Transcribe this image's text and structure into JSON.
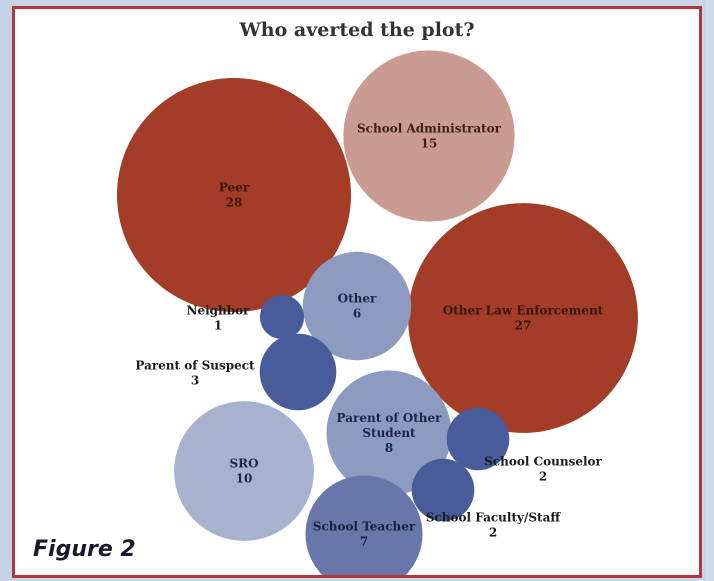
{
  "chart_data": {
    "type": "bubble",
    "title": "Who averted the plot?",
    "colors": {
      "peer": "#a33d27",
      "admin": "#c99b92",
      "law": "#a33d27",
      "light_blue": "#8e9bc0",
      "pale_blue": "#a7b2ce",
      "dark_blue": "#485b9a"
    },
    "bubbles": [
      {
        "name": "Peer",
        "value": 28,
        "color": "#a33d27",
        "text_color": "#3a1410"
      },
      {
        "name": "School Administrator",
        "value": 15,
        "color": "#c99b92",
        "text_color": "#3a1f1a"
      },
      {
        "name": "Other Law Enforcement",
        "value": 27,
        "color": "#a33d27",
        "text_color": "#3a1410"
      },
      {
        "name": "Other",
        "value": 6,
        "color": "#8e9bc0",
        "text_color": "#1d2547"
      },
      {
        "name": "Neighbor",
        "value": 1,
        "color": "#485b9a",
        "text_color": "#1a1a1a"
      },
      {
        "name": "Parent of Suspect",
        "value": 3,
        "color": "#485b9a",
        "text_color": "#1a1a1a"
      },
      {
        "name": "Parent of Other Student",
        "value": 8,
        "color": "#8e9bc0",
        "text_color": "#1d2547"
      },
      {
        "name": "SRO",
        "value": 10,
        "color": "#a7b2ce",
        "text_color": "#1d2547"
      },
      {
        "name": "School Counselor",
        "value": 2,
        "color": "#485b9a",
        "text_color": "#1a1a1a"
      },
      {
        "name": "School Faculty/Staff",
        "value": 2,
        "color": "#485b9a",
        "text_color": "#1a1a1a"
      },
      {
        "name": "School Teacher",
        "value": 7,
        "color": "#6876aa",
        "text_color": "#1a1f3f"
      }
    ]
  },
  "figure": {
    "caption": "Figure 2"
  }
}
